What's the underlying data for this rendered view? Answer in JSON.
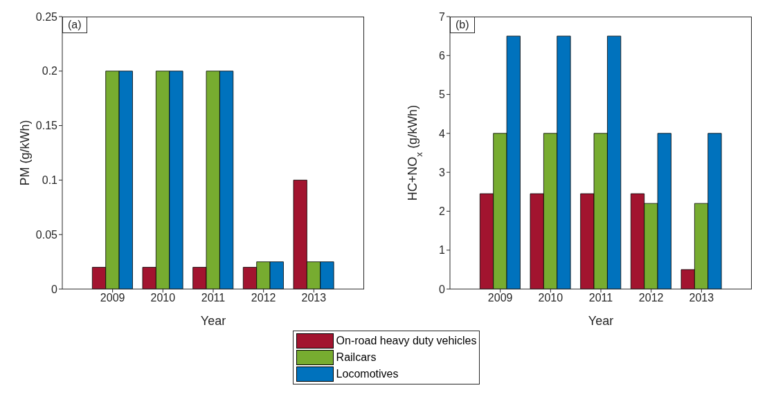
{
  "chart_data": [
    {
      "type": "bar",
      "x": [
        2009,
        2010,
        2011,
        2012,
        2013
      ],
      "xlim": [
        2008,
        2014
      ],
      "xticks": [
        2009,
        2010,
        2011,
        2012,
        2013
      ],
      "ylim": [
        0,
        0.25
      ],
      "yticks": [
        0,
        0.05,
        0.1,
        0.15,
        0.2,
        0.25
      ],
      "xlabel": "Year",
      "ylabel": "PM (g/kWh)",
      "annotations": [
        "(a)"
      ],
      "legend": "bottom",
      "grid": false,
      "series": [
        {
          "name": "On-road heavy duty vehicles",
          "color": "#a2142f",
          "values": [
            0.02,
            0.02,
            0.02,
            0.02,
            0.1
          ]
        },
        {
          "name": "Railcars",
          "color": "#77ac30",
          "values": [
            0.2,
            0.2,
            0.2,
            0.025,
            0.025
          ]
        },
        {
          "name": "Locomotives",
          "color": "#0072bd",
          "values": [
            0.2,
            0.2,
            0.2,
            0.025,
            0.025
          ]
        }
      ]
    },
    {
      "type": "bar",
      "x": [
        2009,
        2010,
        2011,
        2012,
        2013
      ],
      "xlim": [
        2008,
        2014
      ],
      "xticks": [
        2009,
        2010,
        2011,
        2012,
        2013
      ],
      "ylim": [
        0,
        7
      ],
      "yticks": [
        0,
        1,
        2,
        3,
        4,
        5,
        6,
        7
      ],
      "xlabel": "Year",
      "ylabel": "HC+NO$_{x}$ (g/kWh)",
      "annotations": [
        "(b)"
      ],
      "legend": "bottom",
      "grid": false,
      "series": [
        {
          "name": "On-road heavy duty vehicles",
          "color": "#a2142f",
          "values": [
            2.45,
            2.45,
            2.45,
            2.45,
            0.5
          ]
        },
        {
          "name": "Railcars",
          "color": "#77ac30",
          "values": [
            4,
            4,
            4,
            2.2,
            2.2
          ]
        },
        {
          "name": "Locomotives",
          "color": "#0072bd",
          "values": [
            6.5,
            6.5,
            6.5,
            4,
            4
          ]
        }
      ]
    }
  ]
}
